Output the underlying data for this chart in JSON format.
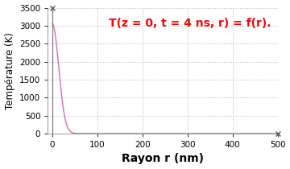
{
  "title": "T(z = 0, t = 4 ns, r) = f(r).",
  "title_color": "#ff0000",
  "xlabel": "Rayon r (nm)",
  "ylabel": "Température (K)",
  "xlim": [
    -10,
    500
  ],
  "ylim": [
    0,
    3500
  ],
  "xticks": [
    0,
    100,
    200,
    300,
    400,
    500
  ],
  "yticks": [
    0,
    500,
    1000,
    1500,
    2000,
    2500,
    3000,
    3500
  ],
  "curve_color": "#d070b0",
  "vline_color": "#808080",
  "vline_x": 0,
  "r0": 20,
  "T0": 3050,
  "background_color": "#ffffff",
  "grid_color": "#aaaaaa",
  "xlabel_fontsize": 10,
  "ylabel_fontsize": 8.5,
  "title_fontsize": 10,
  "tick_fontsize": 7.5
}
